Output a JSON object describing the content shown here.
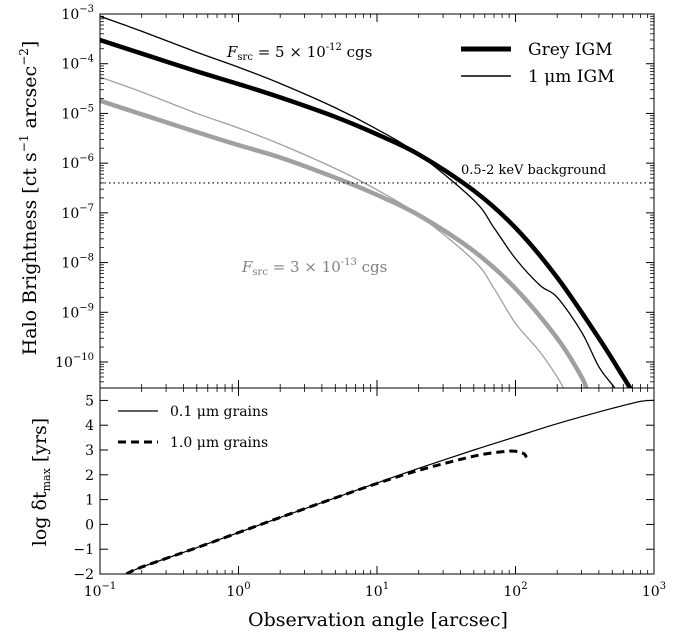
{
  "chart_data": [
    {
      "panel": "top",
      "type": "line",
      "xlabel": "Observation angle [arcsec]",
      "ylabel": "Halo Brightness [ct s⁻¹ arcsec⁻²]",
      "xscale": "log",
      "yscale": "log",
      "xlim": [
        0.1,
        1000
      ],
      "ylim": [
        3e-11,
        0.001
      ],
      "x_tick_labels": [
        "10⁻¹",
        "10⁰",
        "10¹",
        "10²",
        "10³"
      ],
      "y_tick_values": [
        1e-10,
        1e-09,
        1e-08,
        1e-07,
        1e-06,
        1e-05,
        0.0001,
        0.001
      ],
      "y_tick_labels": [
        {
          "base": "10",
          "exp": "-10"
        },
        {
          "base": "10",
          "exp": "-9"
        },
        {
          "base": "10",
          "exp": "-8"
        },
        {
          "base": "10",
          "exp": "-7"
        },
        {
          "base": "10",
          "exp": "-6"
        },
        {
          "base": "10",
          "exp": "-5"
        },
        {
          "base": "10",
          "exp": "-4"
        },
        {
          "base": "10",
          "exp": "-3"
        }
      ],
      "legend": {
        "placement": "top-right",
        "entries": [
          {
            "label": "Grey IGM",
            "style": "thick"
          },
          {
            "label": "1 μm IGM",
            "style": "thin"
          }
        ]
      },
      "annotations": [
        {
          "text": "F_src = 5 × 10⁻¹² cgs",
          "parts": {
            "sym": "F",
            "sub": "src",
            "rest": " = 5 × 10",
            "exp": "-12",
            "unit": " cgs"
          },
          "color": "#000000"
        },
        {
          "text": "F_src = 3 × 10⁻¹³ cgs",
          "parts": {
            "sym": "F",
            "sub": "src",
            "rest": " = 3 × 10",
            "exp": "-13",
            "unit": " cgs"
          },
          "color": "#808080"
        },
        {
          "text": "0.5-2 keV background",
          "color": "#333333"
        }
      ],
      "background_level": 4e-07,
      "series": [
        {
          "group": "bright",
          "color": "#000000",
          "width": "thick",
          "x": [
            0.1,
            0.2,
            0.5,
            1,
            2,
            5,
            10,
            20,
            50,
            100,
            200,
            400,
            600,
            700
          ],
          "y": [
            0.0003,
            0.00016,
            7e-05,
            3.9e-05,
            2.1e-05,
            8.5e-06,
            3.8e-06,
            1.5e-06,
            2.8e-07,
            5e-08,
            5e-09,
            3e-10,
            5e-11,
            2.5e-11
          ]
        },
        {
          "group": "bright",
          "color": "#000000",
          "width": "thin",
          "x": [
            0.1,
            0.2,
            0.5,
            1,
            2,
            5,
            10,
            20,
            50,
            70,
            100,
            150,
            200,
            300,
            400,
            500,
            550
          ],
          "y": [
            0.0009,
            0.00045,
            0.00017,
            8.5e-05,
            4e-05,
            1.3e-05,
            4.8e-06,
            1.5e-06,
            1.8e-07,
            5e-08,
            1.2e-08,
            3.5e-09,
            2e-09,
            4e-10,
            8e-11,
            3.5e-11,
            2.5e-11
          ]
        },
        {
          "group": "faint",
          "color": "#a0a0a0",
          "width": "thick",
          "x": [
            0.1,
            0.2,
            0.5,
            1,
            2,
            5,
            10,
            20,
            50,
            100,
            200,
            300,
            330
          ],
          "y": [
            1.8e-05,
            9.6e-06,
            4.2e-06,
            2.3e-06,
            1.3e-06,
            5.1e-07,
            2.3e-07,
            9e-08,
            1.7e-08,
            3e-09,
            3e-10,
            5e-11,
            2.5e-11
          ]
        },
        {
          "group": "faint",
          "color": "#a0a0a0",
          "width": "thin",
          "x": [
            0.1,
            0.2,
            0.5,
            1,
            2,
            5,
            10,
            20,
            50,
            70,
            100,
            150,
            200,
            230
          ],
          "y": [
            5.4e-05,
            2.7e-05,
            1e-05,
            5.1e-06,
            2.4e-06,
            7.8e-07,
            2.9e-07,
            9e-08,
            1.1e-08,
            3e-09,
            6e-10,
            1.6e-10,
            5e-11,
            2.5e-11
          ]
        }
      ]
    },
    {
      "panel": "bottom",
      "type": "line",
      "xlabel": "Observation angle [arcsec]",
      "ylabel": "log δt_max [yrs]",
      "ylabel_parts": {
        "pre": "log δt",
        "sub": "max",
        "post": " [yrs]"
      },
      "xscale": "log",
      "xlim": [
        0.1,
        1000
      ],
      "ylim": [
        -2,
        5.5
      ],
      "x_tick_values": [
        0.1,
        1,
        10,
        100,
        1000
      ],
      "x_tick_labels": [
        {
          "base": "10",
          "exp": "-1"
        },
        {
          "base": "10",
          "exp": "0"
        },
        {
          "base": "10",
          "exp": "1"
        },
        {
          "base": "10",
          "exp": "2"
        },
        {
          "base": "10",
          "exp": "3"
        }
      ],
      "y_tick_values": [
        -2,
        -1,
        0,
        1,
        2,
        3,
        4,
        5
      ],
      "y_tick_labels": [
        "−2",
        "−1",
        "0",
        "1",
        "2",
        "3",
        "4",
        "5"
      ],
      "legend": {
        "placement": "top-left",
        "entries": [
          {
            "label": "0.1 μm grains",
            "style": "solid"
          },
          {
            "label": "1.0 μm grains",
            "style": "dashed"
          }
        ]
      },
      "series": [
        {
          "name": "0.1 μm grains",
          "style": "solid",
          "x": [
            0.155,
            0.2,
            0.5,
            1,
            2,
            5,
            10,
            20,
            50,
            100,
            200,
            500,
            800,
            1000
          ],
          "y": [
            -2,
            -1.72,
            -0.94,
            -0.33,
            0.28,
            1.07,
            1.67,
            2.26,
            3.0,
            3.53,
            4.06,
            4.68,
            4.96,
            5.0
          ]
        },
        {
          "name": "1.0 μm grains",
          "style": "dashed",
          "x": [
            0.155,
            0.2,
            0.5,
            1,
            2,
            5,
            10,
            20,
            50,
            80,
            100,
            115,
            120
          ],
          "y": [
            -2,
            -1.72,
            -0.94,
            -0.33,
            0.28,
            1.07,
            1.65,
            2.18,
            2.75,
            2.93,
            2.95,
            2.85,
            2.7
          ]
        }
      ]
    }
  ]
}
